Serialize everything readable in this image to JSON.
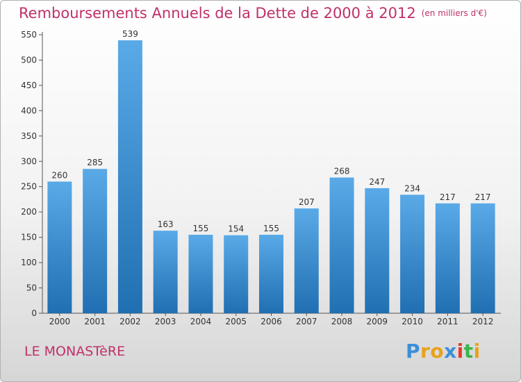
{
  "chart_data": {
    "type": "bar",
    "title": "Remboursements Annuels de la Dette de 2000 à 2012",
    "subtitle": "(en milliers d'€)",
    "categories": [
      "2000",
      "2001",
      "2002",
      "2003",
      "2004",
      "2005",
      "2006",
      "2007",
      "2008",
      "2009",
      "2010",
      "2011",
      "2012"
    ],
    "values": [
      260,
      285,
      539,
      163,
      155,
      154,
      155,
      207,
      268,
      247,
      234,
      217,
      217
    ],
    "ylim": [
      0,
      550
    ],
    "yticks": [
      0,
      50,
      100,
      150,
      200,
      250,
      300,
      350,
      400,
      450,
      500,
      550
    ],
    "xlabel": "",
    "ylabel": "",
    "grid": false,
    "legend": "none",
    "bar_color_top": "#5aaae8",
    "bar_color_bottom": "#1f6fb2"
  },
  "footer": {
    "commune": "LE MONASTèRE"
  },
  "brand": {
    "letters": [
      "P",
      "r",
      "o",
      "x",
      "i",
      "t",
      "i"
    ],
    "colors": [
      "#3a8fd8",
      "#e8a21a",
      "#e8a21a",
      "#3a8fd8",
      "#e83a2a",
      "#3ab54a",
      "#e8a21a"
    ]
  }
}
